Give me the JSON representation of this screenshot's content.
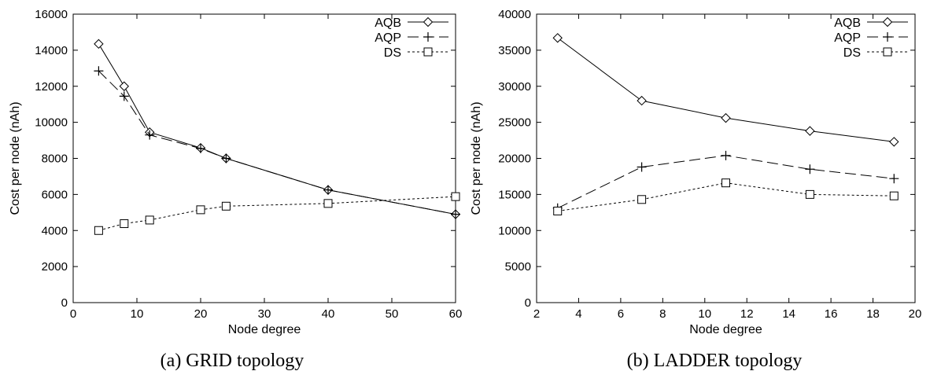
{
  "chart_data": [
    {
      "type": "line",
      "caption": "(a) GRID topology",
      "xlabel": "Node degree",
      "ylabel": "Cost per node (nAh)",
      "xlim": [
        0,
        60
      ],
      "ylim": [
        0,
        16000
      ],
      "xticks": [
        0,
        10,
        20,
        30,
        40,
        50,
        60
      ],
      "yticks": [
        0,
        2000,
        4000,
        6000,
        8000,
        10000,
        12000,
        14000,
        16000
      ],
      "grid": false,
      "legend": "top-right",
      "series": [
        {
          "name": "AQB",
          "marker": "diamond",
          "dash": "solid",
          "x": [
            4,
            8,
            12,
            20,
            24,
            40,
            60
          ],
          "y": [
            14350,
            12000,
            9450,
            8580,
            8000,
            6250,
            4900
          ]
        },
        {
          "name": "AQP",
          "marker": "plus",
          "dash": "long-dash",
          "x": [
            4,
            8,
            12,
            20,
            24,
            40,
            60
          ],
          "y": [
            12850,
            11450,
            9300,
            8550,
            8000,
            6250,
            4900
          ]
        },
        {
          "name": "DS",
          "marker": "square",
          "dash": "dotted",
          "x": [
            4,
            8,
            12,
            20,
            24,
            40,
            60
          ],
          "y": [
            4000,
            4380,
            4580,
            5150,
            5350,
            5500,
            5880
          ]
        }
      ]
    },
    {
      "type": "line",
      "caption": "(b) LADDER topology",
      "xlabel": "Node degree",
      "ylabel": "Cost per node (nAh)",
      "xlim": [
        2,
        20
      ],
      "ylim": [
        0,
        40000
      ],
      "xticks": [
        2,
        4,
        6,
        8,
        10,
        12,
        14,
        16,
        18,
        20
      ],
      "yticks": [
        0,
        5000,
        10000,
        15000,
        20000,
        25000,
        30000,
        35000,
        40000
      ],
      "grid": false,
      "legend": "top-right",
      "series": [
        {
          "name": "AQB",
          "marker": "diamond",
          "dash": "solid",
          "x": [
            3,
            7,
            11,
            15,
            19
          ],
          "y": [
            36700,
            28000,
            25600,
            23800,
            22300
          ]
        },
        {
          "name": "AQP",
          "marker": "plus",
          "dash": "long-dash",
          "x": [
            3,
            7,
            11,
            15,
            19
          ],
          "y": [
            13100,
            18800,
            20400,
            18500,
            17200
          ]
        },
        {
          "name": "DS",
          "marker": "square",
          "dash": "dotted",
          "x": [
            3,
            7,
            11,
            15,
            19
          ],
          "y": [
            12700,
            14300,
            16600,
            15000,
            14800
          ]
        }
      ]
    }
  ]
}
